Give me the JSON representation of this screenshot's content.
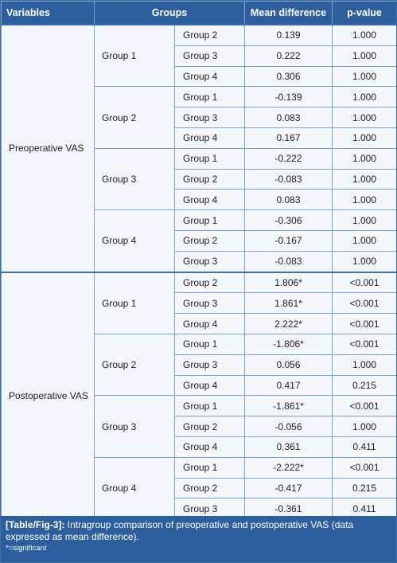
{
  "headers": {
    "variables": "Variables",
    "groups": "Groups",
    "mean_difference": "Mean difference",
    "p_value": "p-value"
  },
  "sections": [
    {
      "variable": "Preoperative VAS",
      "groups": [
        {
          "group": "Group 1",
          "rows": [
            {
              "comp": "Group 2",
              "md": "0.139",
              "p": "1.000"
            },
            {
              "comp": "Group 3",
              "md": "0.222",
              "p": "1.000"
            },
            {
              "comp": "Group 4",
              "md": "0.306",
              "p": "1.000"
            }
          ]
        },
        {
          "group": "Group 2",
          "rows": [
            {
              "comp": "Group 1",
              "md": "-0.139",
              "p": "1.000"
            },
            {
              "comp": "Group 3",
              "md": "0.083",
              "p": "1.000"
            },
            {
              "comp": "Group 4",
              "md": "0.167",
              "p": "1.000"
            }
          ]
        },
        {
          "group": "Group 3",
          "rows": [
            {
              "comp": "Group 1",
              "md": "-0.222",
              "p": "1.000"
            },
            {
              "comp": "Group 2",
              "md": "-0.083",
              "p": "1.000"
            },
            {
              "comp": "Group 4",
              "md": "0.083",
              "p": "1.000"
            }
          ]
        },
        {
          "group": "Group 4",
          "rows": [
            {
              "comp": "Group 1",
              "md": "-0.306",
              "p": "1.000"
            },
            {
              "comp": "Group 2",
              "md": "-0.167",
              "p": "1.000"
            },
            {
              "comp": "Group 3",
              "md": "-0.083",
              "p": "1.000"
            }
          ]
        }
      ]
    },
    {
      "variable": "Postoperative VAS",
      "groups": [
        {
          "group": "Group 1",
          "rows": [
            {
              "comp": "Group 2",
              "md": "1.806*",
              "p": "<0.001"
            },
            {
              "comp": "Group 3",
              "md": "1.861*",
              "p": "<0.001"
            },
            {
              "comp": "Group 4",
              "md": "2.222*",
              "p": "<0.001"
            }
          ]
        },
        {
          "group": "Group 2",
          "rows": [
            {
              "comp": "Group 1",
              "md": "-1.806*",
              "p": "<0.001"
            },
            {
              "comp": "Group 3",
              "md": "0.056",
              "p": "1.000"
            },
            {
              "comp": "Group 4",
              "md": "0.417",
              "p": "0.215"
            }
          ]
        },
        {
          "group": "Group 3",
          "rows": [
            {
              "comp": "Group 1",
              "md": "-1.861*",
              "p": "<0.001"
            },
            {
              "comp": "Group 2",
              "md": "-0.056",
              "p": "1.000"
            },
            {
              "comp": "Group 4",
              "md": "0.361",
              "p": "0.411"
            }
          ]
        },
        {
          "group": "Group 4",
          "rows": [
            {
              "comp": "Group 1",
              "md": "-2.222*",
              "p": "<0.001"
            },
            {
              "comp": "Group 2",
              "md": "-0.417",
              "p": "0.215"
            },
            {
              "comp": "Group 3",
              "md": "-0.361",
              "p": "0.411"
            }
          ]
        }
      ]
    }
  ],
  "caption": {
    "label": "[Table/Fig-3]:",
    "text": "Intragroup comparison of preoperative and postoperative VAS (data expressed as mean difference).",
    "note": "*=significant"
  }
}
